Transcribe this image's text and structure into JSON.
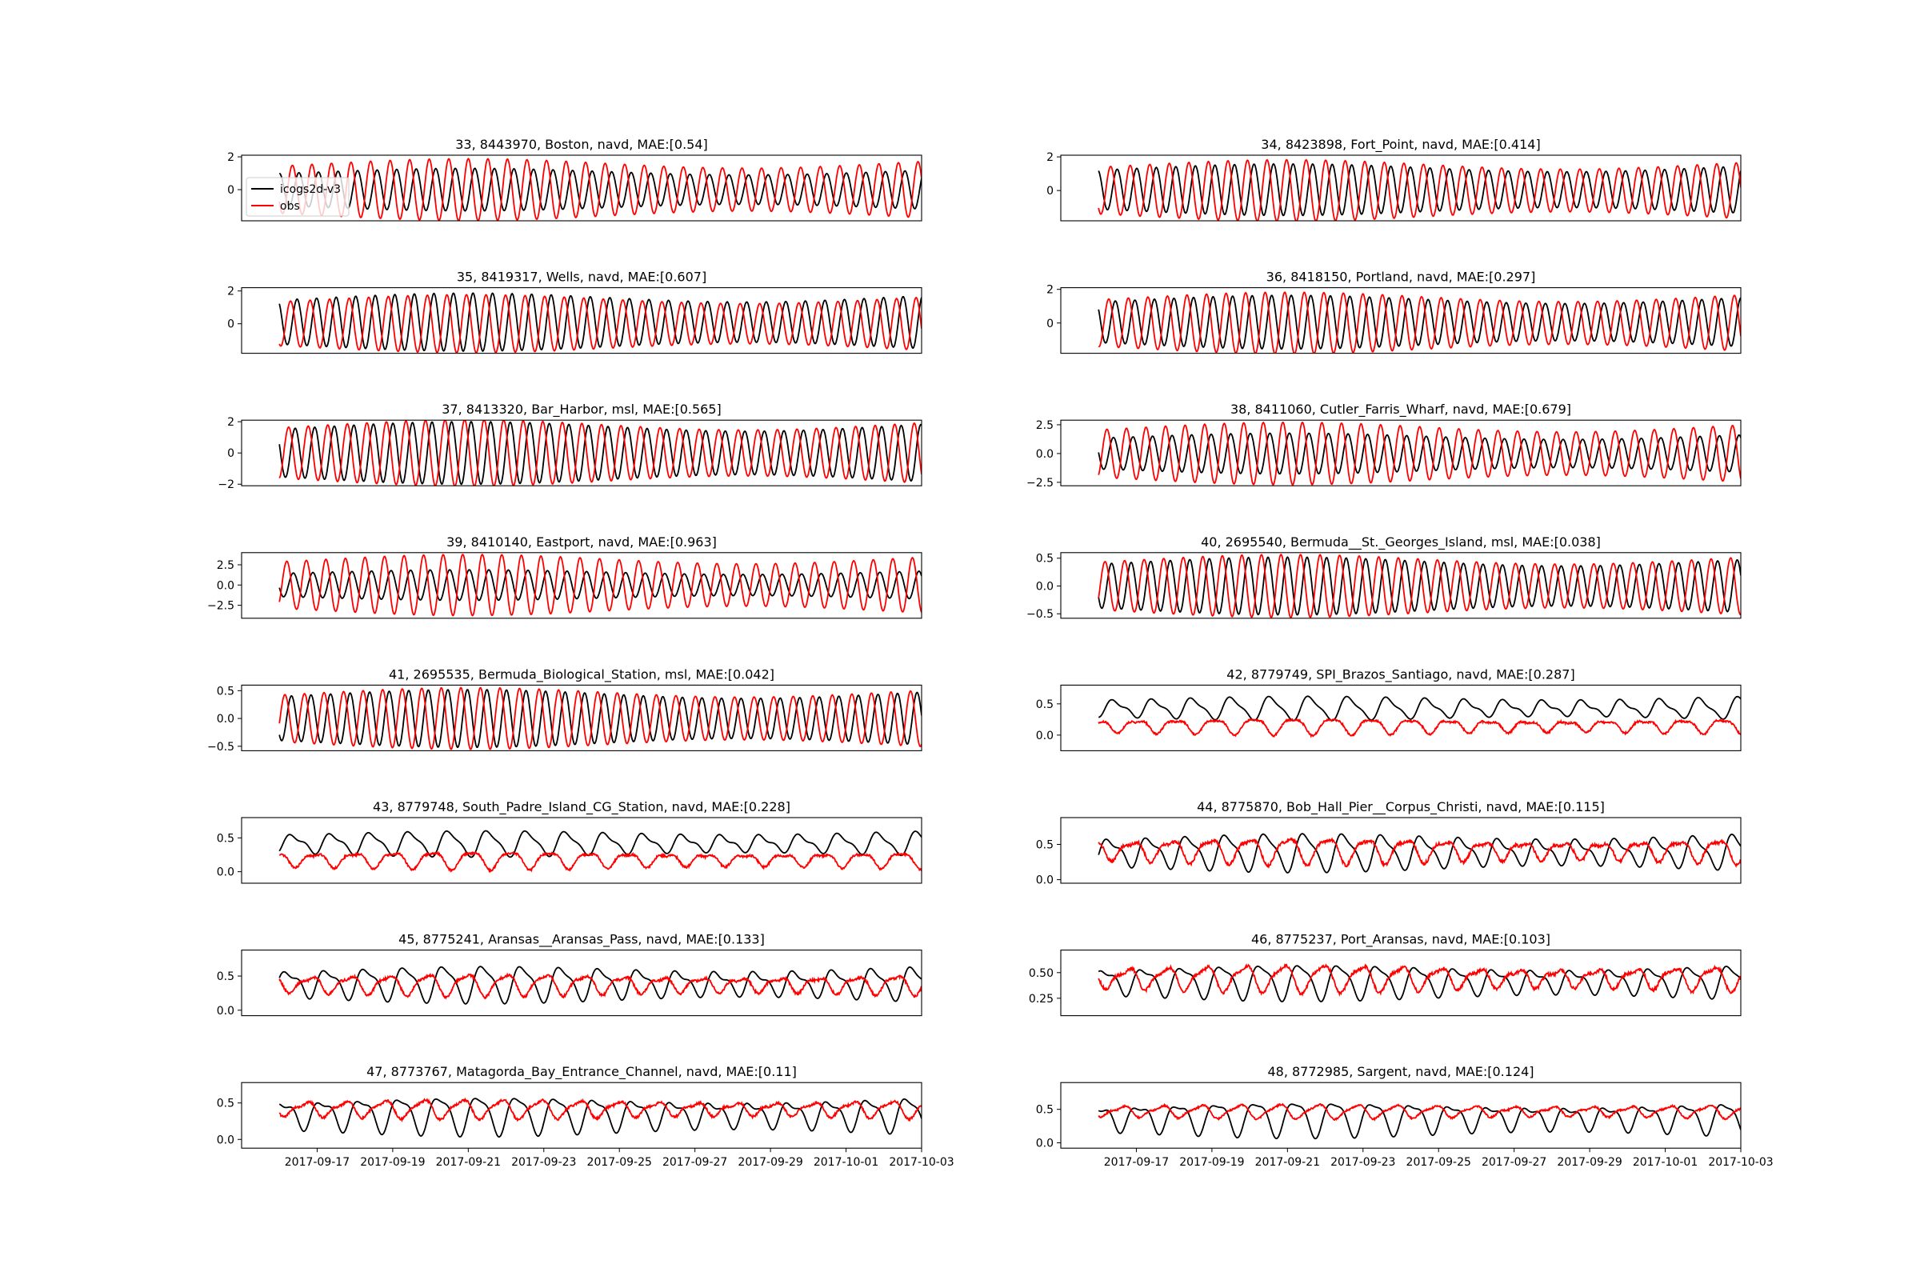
{
  "figure": {
    "background": "#ffffff"
  },
  "series_styles": {
    "model_color": "#000000",
    "obs_color": "#ff0000"
  },
  "legend": {
    "placement": "upper-left of first panel",
    "entries": [
      "icogs2d-v3",
      "obs"
    ]
  },
  "x_axis": {
    "type": "date",
    "range": [
      "2017-09-15",
      "2017-10-03"
    ],
    "tick_labels": [
      "2017-09-17",
      "2017-09-19",
      "2017-09-21",
      "2017-09-23",
      "2017-09-25",
      "2017-09-27",
      "2017-09-29",
      "2017-10-01",
      "2017-10-03"
    ],
    "data_start": "2017-09-16",
    "data_end": "2017-10-03"
  },
  "chart_data": [
    {
      "type": "line",
      "title": "33, 8443970, Boston, navd, MAE:[0.54]",
      "ylim": [
        -1.9,
        2.1
      ],
      "yticks": [
        "2",
        "0"
      ],
      "ytick_values": [
        2,
        0
      ],
      "series": [
        {
          "name": "icogs2d-v3",
          "values_summary": {
            "mean": 0.0,
            "amplitude": 1.1,
            "cycle_hours": 12.42
          }
        },
        {
          "name": "obs",
          "values_summary": {
            "mean": 0.0,
            "amplitude": 1.6,
            "cycle_hours": 12.42
          }
        }
      ]
    },
    {
      "type": "line",
      "title": "34, 8423898, Fort_Point, navd, MAE:[0.414]",
      "ylim": [
        -1.8,
        2.1
      ],
      "yticks": [
        "2",
        "0"
      ],
      "ytick_values": [
        2,
        0
      ],
      "series": [
        {
          "name": "icogs2d-v3",
          "values_summary": {
            "mean": 0.05,
            "amplitude": 1.3,
            "cycle_hours": 12.42
          }
        },
        {
          "name": "obs",
          "values_summary": {
            "mean": 0.0,
            "amplitude": 1.55,
            "cycle_hours": 12.42
          }
        }
      ]
    },
    {
      "type": "line",
      "title": "35, 8419317, Wells, navd, MAE:[0.607]",
      "ylim": [
        -1.8,
        2.2
      ],
      "yticks": [
        "2",
        "0"
      ],
      "ytick_values": [
        2,
        0
      ],
      "series": [
        {
          "name": "icogs2d-v3",
          "values_summary": {
            "mean": 0.1,
            "amplitude": 1.5,
            "cycle_hours": 12.42
          }
        },
        {
          "name": "obs",
          "values_summary": {
            "mean": 0.0,
            "amplitude": 1.5,
            "cycle_hours": 12.42
          }
        }
      ]
    },
    {
      "type": "line",
      "title": "36, 8418150, Portland, navd, MAE:[0.297]",
      "ylim": [
        -1.8,
        2.1
      ],
      "yticks": [
        "2",
        "0"
      ],
      "ytick_values": [
        2,
        0
      ],
      "series": [
        {
          "name": "icogs2d-v3",
          "values_summary": {
            "mean": 0.05,
            "amplitude": 1.35,
            "cycle_hours": 12.42
          }
        },
        {
          "name": "obs",
          "values_summary": {
            "mean": 0.0,
            "amplitude": 1.55,
            "cycle_hours": 12.42
          }
        }
      ]
    },
    {
      "type": "line",
      "title": "37, 8413320, Bar_Harbor, msl, MAE:[0.565]",
      "ylim": [
        -2.1,
        2.1
      ],
      "yticks": [
        "2",
        "0",
        "−2"
      ],
      "ytick_values": [
        2,
        0,
        -2
      ],
      "series": [
        {
          "name": "icogs2d-v3",
          "values_summary": {
            "mean": 0.0,
            "amplitude": 1.7,
            "cycle_hours": 12.42
          }
        },
        {
          "name": "obs",
          "values_summary": {
            "mean": 0.0,
            "amplitude": 1.8,
            "cycle_hours": 12.42
          }
        }
      ]
    },
    {
      "type": "line",
      "title": "38, 8411060, Cutler_Farris_Wharf, navd, MAE:[0.679]",
      "ylim": [
        -2.8,
        2.9
      ],
      "yticks": [
        "2.5",
        "0.0",
        "−2.5"
      ],
      "ytick_values": [
        2.5,
        0,
        -2.5
      ],
      "series": [
        {
          "name": "icogs2d-v3",
          "values_summary": {
            "mean": 0.0,
            "amplitude": 1.5,
            "cycle_hours": 12.42
          }
        },
        {
          "name": "obs",
          "values_summary": {
            "mean": 0.0,
            "amplitude": 2.3,
            "cycle_hours": 12.42
          }
        }
      ]
    },
    {
      "type": "line",
      "title": "39, 8410140, Eastport, navd, MAE:[0.963]",
      "ylim": [
        -4.1,
        4.0
      ],
      "yticks": [
        "2.5",
        "0.0",
        "−2.5"
      ],
      "ytick_values": [
        2.5,
        0,
        -2.5
      ],
      "series": [
        {
          "name": "icogs2d-v3",
          "values_summary": {
            "mean": 0.0,
            "amplitude": 1.6,
            "cycle_hours": 12.42
          }
        },
        {
          "name": "obs",
          "values_summary": {
            "mean": 0.0,
            "amplitude": 3.2,
            "cycle_hours": 12.42
          }
        }
      ]
    },
    {
      "type": "line",
      "title": "40, 2695540, Bermuda__St._Georges_Island, msl, MAE:[0.038]",
      "ylim": [
        -0.58,
        0.6
      ],
      "yticks": [
        "0.5",
        "0.0",
        "−0.5"
      ],
      "ytick_values": [
        0.5,
        0,
        -0.5
      ],
      "series": [
        {
          "name": "icogs2d-v3",
          "values_summary": {
            "mean": 0.0,
            "amplitude": 0.44,
            "cycle_hours": 12.42
          }
        },
        {
          "name": "obs",
          "values_summary": {
            "mean": 0.0,
            "amplitude": 0.48,
            "cycle_hours": 12.42
          }
        }
      ]
    },
    {
      "type": "line",
      "title": "41, 2695535, Bermuda_Biological_Station, msl, MAE:[0.042]",
      "ylim": [
        -0.58,
        0.6
      ],
      "yticks": [
        "0.5",
        "0.0",
        "−0.5"
      ],
      "ytick_values": [
        0.5,
        0,
        -0.5
      ],
      "series": [
        {
          "name": "icogs2d-v3",
          "values_summary": {
            "mean": 0.0,
            "amplitude": 0.44,
            "cycle_hours": 12.42
          }
        },
        {
          "name": "obs",
          "values_summary": {
            "mean": 0.0,
            "amplitude": 0.47,
            "cycle_hours": 12.42
          }
        }
      ]
    },
    {
      "type": "line",
      "title": "42, 8779749, SPI_Brazos_Santiago, navd, MAE:[0.287]",
      "ylim": [
        -0.25,
        0.8
      ],
      "yticks": [
        "0.5",
        "0.0"
      ],
      "ytick_values": [
        0.5,
        0
      ],
      "series": [
        {
          "name": "icogs2d-v3",
          "values_summary": {
            "mean": 0.43,
            "amplitude": 0.14,
            "cycle_hours": 24.8
          }
        },
        {
          "name": "obs",
          "values_summary": {
            "mean": 0.15,
            "amplitude": 0.1,
            "cycle_hours": 24.8
          }
        }
      ]
    },
    {
      "type": "line",
      "title": "43, 8779748, South_Padre_Island_CG_Station, navd, MAE:[0.228]",
      "ylim": [
        -0.17,
        0.8
      ],
      "yticks": [
        "0.5",
        "0.0"
      ],
      "ytick_values": [
        0.5,
        0
      ],
      "series": [
        {
          "name": "icogs2d-v3",
          "values_summary": {
            "mean": 0.42,
            "amplitude": 0.14,
            "cycle_hours": 24.8
          }
        },
        {
          "name": "obs",
          "values_summary": {
            "mean": 0.18,
            "amplitude": 0.1,
            "cycle_hours": 24.8
          }
        }
      ]
    },
    {
      "type": "line",
      "title": "44, 8775870, Bob_Hall_Pier__Corpus_Christi, navd, MAE:[0.115]",
      "ylim": [
        -0.05,
        0.88
      ],
      "yticks": [
        "0.5",
        "0.0"
      ],
      "ytick_values": [
        0.5,
        0
      ],
      "series": [
        {
          "name": "icogs2d-v3",
          "values_summary": {
            "mean": 0.4,
            "amplitude": 0.2,
            "cycle_hours": 24.8
          }
        },
        {
          "name": "obs",
          "values_summary": {
            "mean": 0.42,
            "amplitude": 0.14,
            "cycle_hours": 24.8
          }
        }
      ]
    },
    {
      "type": "line",
      "title": "45, 8775241, Aransas__Aransas_Pass, navd, MAE:[0.133]",
      "ylim": [
        -0.08,
        0.88
      ],
      "yticks": [
        "0.5",
        "0.0"
      ],
      "ytick_values": [
        0.5,
        0
      ],
      "series": [
        {
          "name": "icogs2d-v3",
          "values_summary": {
            "mean": 0.4,
            "amplitude": 0.2,
            "cycle_hours": 24.8
          }
        },
        {
          "name": "obs",
          "values_summary": {
            "mean": 0.38,
            "amplitude": 0.12,
            "cycle_hours": 24.8
          }
        }
      ]
    },
    {
      "type": "line",
      "title": "46, 8775237, Port_Aransas, navd, MAE:[0.103]",
      "ylim": [
        0.08,
        0.72
      ],
      "yticks": [
        "0.50",
        "0.25"
      ],
      "ytick_values": [
        0.5,
        0.25
      ],
      "series": [
        {
          "name": "icogs2d-v3",
          "values_summary": {
            "mean": 0.42,
            "amplitude": 0.13,
            "cycle_hours": 24.8
          }
        },
        {
          "name": "obs",
          "values_summary": {
            "mean": 0.45,
            "amplitude": 0.1,
            "cycle_hours": 24.8
          }
        }
      ]
    },
    {
      "type": "line",
      "title": "47, 8773767, Matagorda_Bay_Entrance_Channel, navd, MAE:[0.11]",
      "ylim": [
        -0.12,
        0.78
      ],
      "yticks": [
        "0.5",
        "0.0"
      ],
      "ytick_values": [
        0.5,
        0
      ],
      "series": [
        {
          "name": "icogs2d-v3",
          "values_summary": {
            "mean": 0.35,
            "amplitude": 0.2,
            "cycle_hours": 24.8
          }
        },
        {
          "name": "obs",
          "values_summary": {
            "mean": 0.42,
            "amplitude": 0.1,
            "cycle_hours": 24.8
          }
        }
      ]
    },
    {
      "type": "line",
      "title": "48, 8772985, Sargent, navd, MAE:[0.124]",
      "ylim": [
        -0.08,
        0.9
      ],
      "yticks": [
        "0.5",
        "0.0"
      ],
      "ytick_values": [
        0.5,
        0
      ],
      "series": [
        {
          "name": "icogs2d-v3",
          "values_summary": {
            "mean": 0.38,
            "amplitude": 0.2,
            "cycle_hours": 24.8
          }
        },
        {
          "name": "obs",
          "values_summary": {
            "mean": 0.47,
            "amplitude": 0.08,
            "cycle_hours": 24.8
          }
        }
      ]
    }
  ]
}
